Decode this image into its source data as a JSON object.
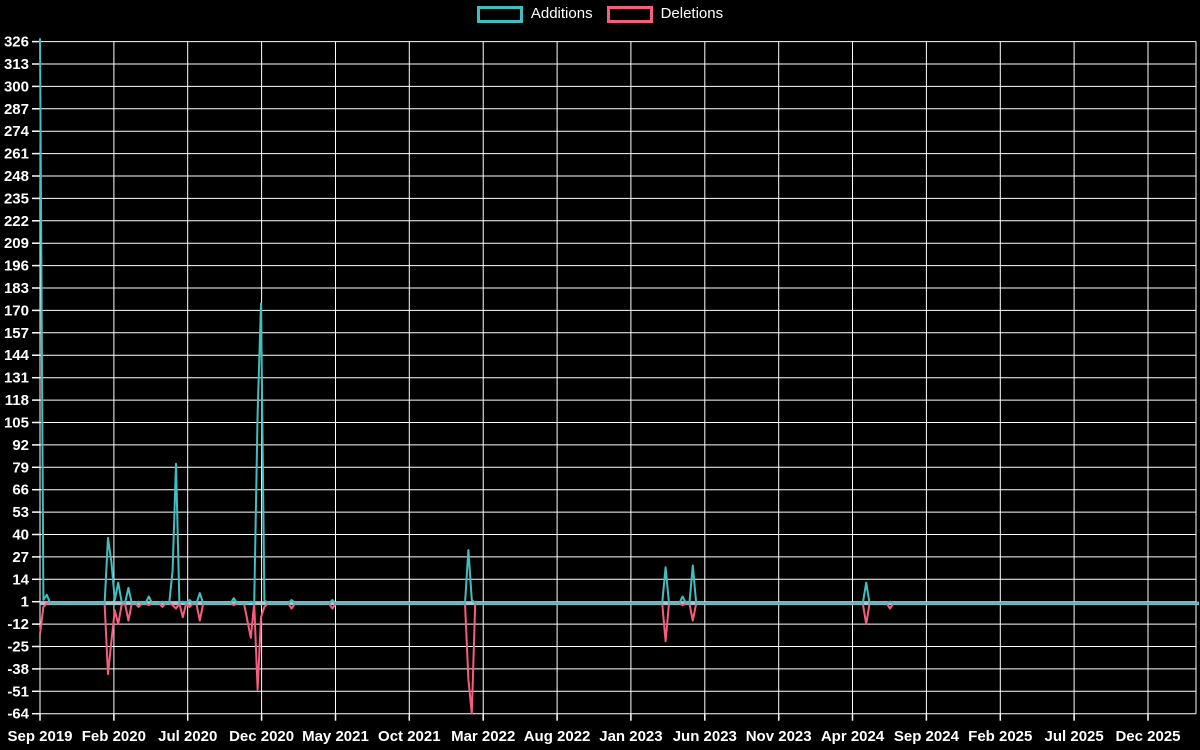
{
  "legend": {
    "additions_label": "Additions",
    "deletions_label": "Deletions"
  },
  "colors": {
    "background": "#000000",
    "grid": "#ffffff",
    "text": "#ffffff",
    "additions": "#3fc0c0",
    "deletions": "#f85c7e",
    "baseline_blend": "#a9c5cf"
  },
  "chart_data": {
    "type": "line",
    "title": "",
    "xlabel": "",
    "ylabel": "",
    "ylim": [
      -64,
      326
    ],
    "grid": true,
    "legend_position": "top-center",
    "x_tick_labels": [
      "Sep 2019",
      "Feb 2020",
      "Jul 2020",
      "Dec 2020",
      "May 2021",
      "Oct 2021",
      "Mar 2022",
      "Aug 2022",
      "Jan 2023",
      "Jun 2023",
      "Nov 2023",
      "Apr 2024",
      "Sep 2024",
      "Feb 2025",
      "Jul 2025",
      "Dec 2025"
    ],
    "y_ticks": [
      326,
      313,
      300,
      287,
      274,
      261,
      248,
      235,
      222,
      209,
      196,
      183,
      170,
      157,
      144,
      131,
      118,
      105,
      92,
      79,
      66,
      53,
      40,
      27,
      14,
      1,
      -12,
      -25,
      -38,
      -51,
      -64
    ],
    "weeks_total": 340,
    "note": "weekly series; weeks not listed have value 0",
    "series": [
      {
        "name": "Additions",
        "color": "#3fc0c0",
        "sparse_points_week_value": [
          [
            0,
            328
          ],
          [
            1,
            2
          ],
          [
            2,
            5
          ],
          [
            20,
            38
          ],
          [
            21,
            24
          ],
          [
            22,
            2
          ],
          [
            23,
            12
          ],
          [
            24,
            1
          ],
          [
            26,
            9
          ],
          [
            29,
            1
          ],
          [
            32,
            4
          ],
          [
            36,
            1
          ],
          [
            39,
            19
          ],
          [
            40,
            81
          ],
          [
            42,
            1
          ],
          [
            44,
            2
          ],
          [
            47,
            6
          ],
          [
            57,
            3
          ],
          [
            62,
            1
          ],
          [
            64,
            110
          ],
          [
            65,
            174
          ],
          [
            66,
            2
          ],
          [
            74,
            2
          ],
          [
            86,
            2
          ],
          [
            126,
            31
          ],
          [
            127,
            2
          ],
          [
            184,
            21
          ],
          [
            189,
            4
          ],
          [
            192,
            22
          ],
          [
            243,
            12
          ],
          [
            250,
            1
          ]
        ]
      },
      {
        "name": "Deletions",
        "color": "#f85c7e",
        "sparse_points_week_value": [
          [
            0,
            -18
          ],
          [
            1,
            -2
          ],
          [
            20,
            -41
          ],
          [
            21,
            -22
          ],
          [
            22,
            -4
          ],
          [
            23,
            -12
          ],
          [
            24,
            -1
          ],
          [
            26,
            -10
          ],
          [
            29,
            -2
          ],
          [
            32,
            -1
          ],
          [
            36,
            -2
          ],
          [
            39,
            -1
          ],
          [
            40,
            -3
          ],
          [
            42,
            -8
          ],
          [
            44,
            -2
          ],
          [
            47,
            -10
          ],
          [
            57,
            -1
          ],
          [
            61,
            -10
          ],
          [
            62,
            -20
          ],
          [
            64,
            -50
          ],
          [
            65,
            -8
          ],
          [
            66,
            -2
          ],
          [
            74,
            -3
          ],
          [
            86,
            -3
          ],
          [
            126,
            -44
          ],
          [
            127,
            -64
          ],
          [
            184,
            -22
          ],
          [
            189,
            -1
          ],
          [
            192,
            -10
          ],
          [
            243,
            -12
          ],
          [
            250,
            -3
          ]
        ]
      }
    ]
  }
}
